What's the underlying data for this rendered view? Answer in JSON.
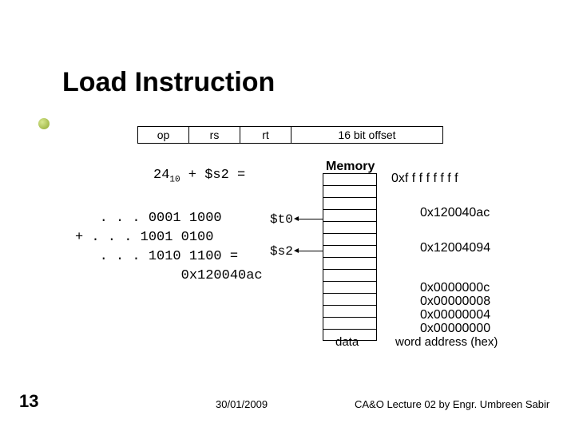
{
  "title": "Load Instruction",
  "inst": {
    "op": "op",
    "rs": "rs",
    "rt": "rt",
    "offset": "16 bit offset"
  },
  "equation": {
    "coeff": "24",
    "sub": "10",
    "rest": " + $s2 ="
  },
  "memory": {
    "title": "Memory",
    "top_addr": "0xf f f f f f f f",
    "rows": 14,
    "data_label": "data",
    "wa_label": "word address (hex)"
  },
  "calc": {
    "line1": "   . . . 0001 1000",
    "line2": "+ . . . 1001 0100",
    "line3": "   . . . 1010 1100 =",
    "line4": "             0x120040ac"
  },
  "regs": {
    "t0": "$t0",
    "s2": "$s2"
  },
  "addrs": {
    "ac": "0x120040ac",
    "n94": "0x12004094",
    "n0c": "0x0000000c",
    "n08": "0x00000008",
    "n04": "0x00000004",
    "n00": "0x00000000"
  },
  "footer": {
    "slide_num": "13",
    "date": "30/01/2009",
    "credit": "CA&O Lecture 02 by Engr. Umbreen Sabir"
  }
}
